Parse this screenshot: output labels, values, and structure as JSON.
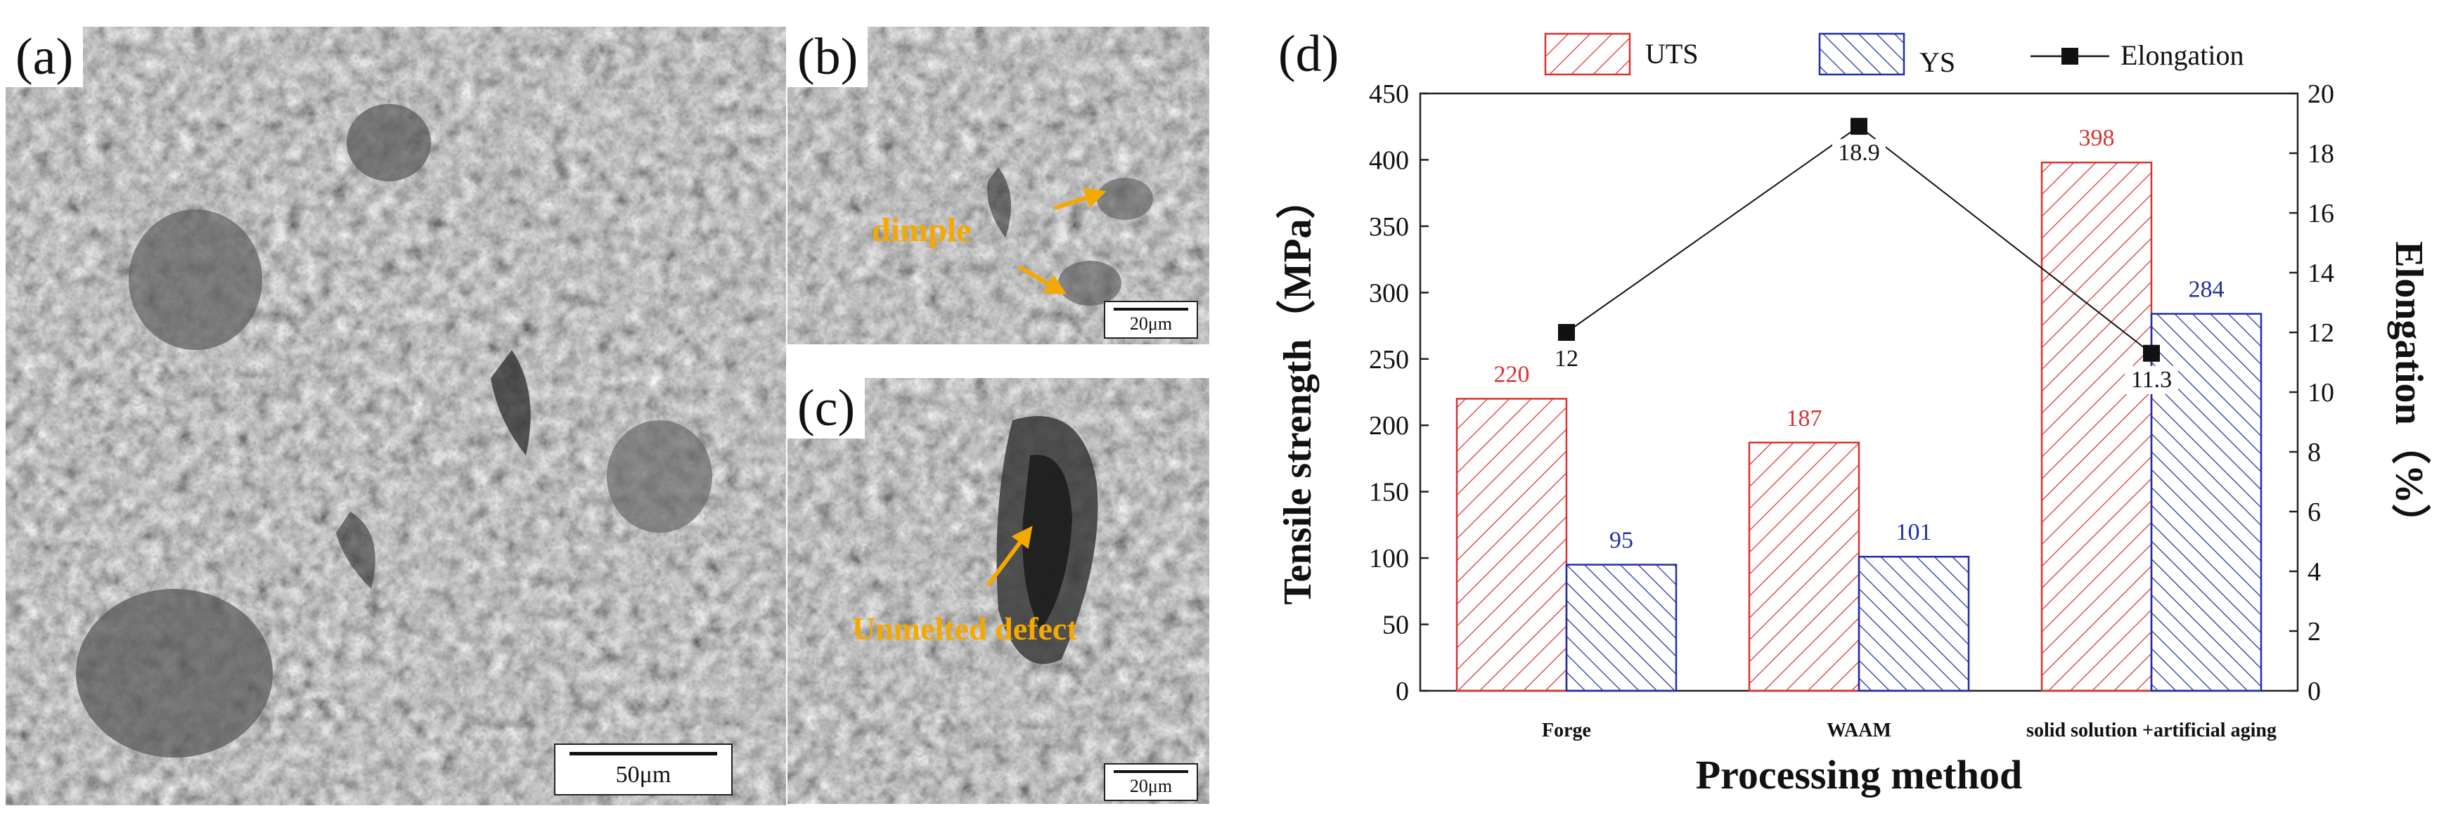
{
  "figure": {
    "panels": {
      "a": {
        "label": "(a)",
        "scale_bar": "50μm"
      },
      "b": {
        "label": "(b)",
        "annotation": "dimple",
        "scale_bar": "20μm"
      },
      "c": {
        "label": "(c)",
        "annotation": "Unmelted defect",
        "scale_bar": "20μm"
      },
      "d": {
        "label": "(d)"
      }
    },
    "colors": {
      "uts": "#d9322f",
      "ys": "#1f2fa8",
      "elongation": "#111111",
      "annotation": "#f5a800"
    }
  },
  "chart_data": {
    "type": "bar",
    "categories": [
      "Forge",
      "WAAM",
      "solid solution +artificial aging"
    ],
    "series": [
      {
        "name": "UTS",
        "type": "bar",
        "axis": "left",
        "values": [
          220,
          187,
          398
        ],
        "labels": [
          "220",
          "187",
          "398"
        ]
      },
      {
        "name": "YS",
        "type": "bar",
        "axis": "left",
        "values": [
          95,
          101,
          284
        ],
        "labels": [
          "95",
          "101",
          "284"
        ]
      },
      {
        "name": "Elongation",
        "type": "line",
        "axis": "right",
        "values": [
          12,
          18.9,
          11.3
        ],
        "labels": [
          "12",
          "18.9",
          "11.3"
        ]
      }
    ],
    "xlabel": "Processing method",
    "ylabel": "Tensile strength（MPa）",
    "y2label": "Elongation（%）",
    "ylim": [
      0,
      450
    ],
    "y2lim": [
      0,
      20
    ],
    "yticks": [
      "0",
      "50",
      "100",
      "150",
      "200",
      "250",
      "300",
      "350",
      "400",
      "450"
    ],
    "y2ticks": [
      "0",
      "2",
      "4",
      "6",
      "8",
      "10",
      "12",
      "14",
      "16",
      "18",
      "20"
    ],
    "legend": {
      "placement": "top",
      "entries": [
        "UTS",
        "YS",
        "Elongation"
      ]
    },
    "grid": false
  }
}
